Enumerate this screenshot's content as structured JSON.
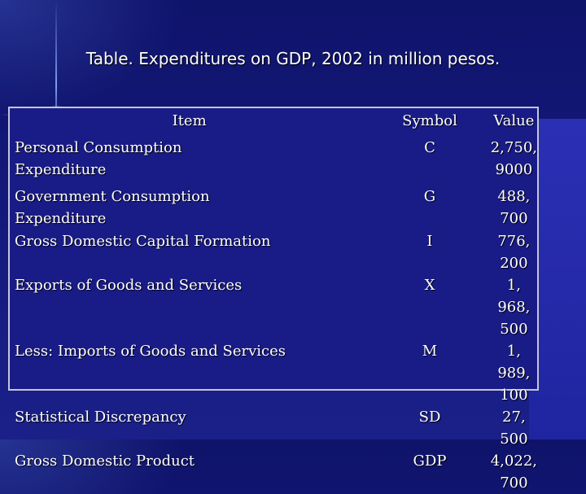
{
  "title": "Table. Expenditures on GDP, 2002 in million pesos.",
  "table": {
    "headers": [
      "Item",
      "Symbol",
      "Value"
    ],
    "rows": [
      {
        "item": "Personal Consumption Expenditure",
        "symbol": "C",
        "value": "2,750, 9000"
      },
      {
        "item": "Government Consumption Expenditure",
        "symbol": "G",
        "value": "488, 700"
      },
      {
        "item": "Gross Domestic Capital Formation",
        "symbol": "I",
        "value": "776, 200"
      },
      {
        "item": "Exports of Goods and Services",
        "symbol": "X",
        "value": "1, 968, 500"
      },
      {
        "item": "Less: Imports of Goods and Services",
        "symbol": "M",
        "value": "1, 989, 100"
      },
      {
        "item": "Statistical Discrepancy",
        "symbol": "SD",
        "value": "27, 500"
      },
      {
        "item": "Gross Domestic Product",
        "symbol": "GDP",
        "value": "4,022, 700"
      }
    ]
  }
}
